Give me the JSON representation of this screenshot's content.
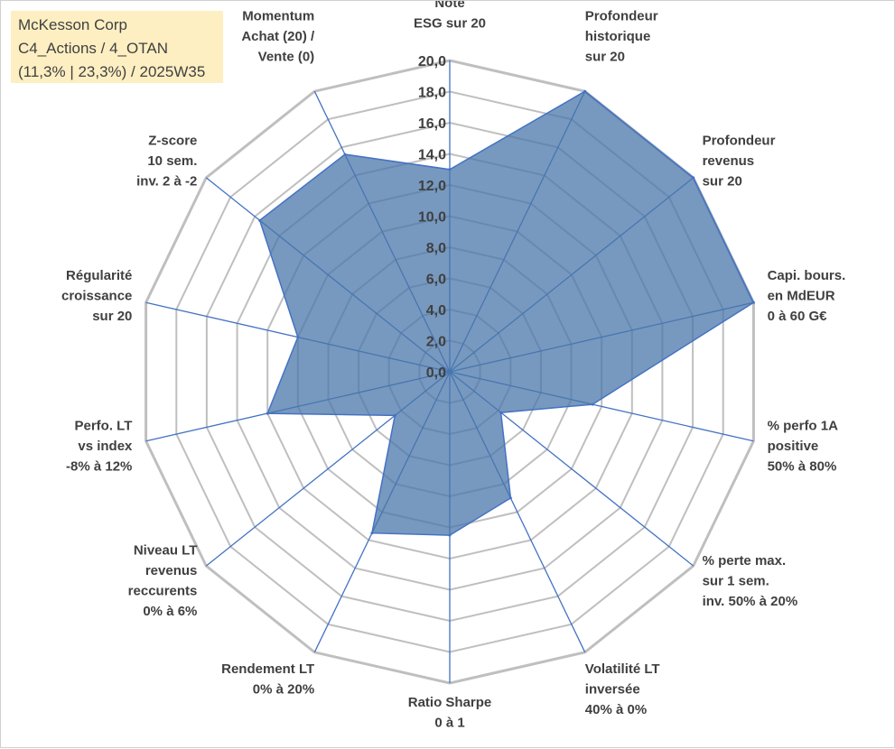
{
  "info_box": {
    "line1": "McKesson Corp",
    "line2": "C4_Actions / 4_OTAN",
    "line3": "(11,3% | 23,3%) / 2025W35"
  },
  "colors": {
    "grid": "#bfbfbf",
    "spoke": "#4472c4",
    "fill": "#4a77aa",
    "fill_opacity": "0.75",
    "text": "#404040",
    "info_bg": "#fdefc2"
  },
  "chart_data": {
    "type": "radar",
    "rmin": 0,
    "rmax": 20,
    "tick_labels": [
      "0,0",
      "2,0",
      "4,0",
      "6,0",
      "8,0",
      "10,0",
      "12,0",
      "14,0",
      "16,0",
      "18,0",
      "20,0"
    ],
    "grid": true,
    "axes": [
      {
        "label": [
          "Note",
          "ESG sur 20"
        ],
        "value": 13
      },
      {
        "label": [
          "Profondeur",
          "historique",
          "sur 20"
        ],
        "value": 20
      },
      {
        "label": [
          "Profondeur",
          "revenus",
          "sur 20"
        ],
        "value": 20
      },
      {
        "label": [
          "Capi. bours.",
          "en MdEUR",
          "0 à 60 G€"
        ],
        "value": 20
      },
      {
        "label": [
          "% perfo 1A",
          "positive",
          "50% à 80%"
        ],
        "value": 9.4
      },
      {
        "label": [
          "% perte max.",
          "sur 1 sem.",
          "inv. 50% à 20%"
        ],
        "value": 4.2
      },
      {
        "label": [
          "Volatilité LT",
          "inversée",
          "40% à 0%"
        ],
        "value": 9
      },
      {
        "label": [
          "Ratio Sharpe",
          "0 à 1"
        ],
        "value": 10.5
      },
      {
        "label": [
          "Rendement LT",
          "0% à 20%"
        ],
        "value": 11.5
      },
      {
        "label": [
          "Niveau LT",
          "revenus",
          "reccurents",
          "0% à 6%"
        ],
        "value": 4.5
      },
      {
        "label": [
          "Perfo. LT",
          "vs index",
          "-8% à 12%"
        ],
        "value": 12
      },
      {
        "label": [
          "Régularité",
          "croissance",
          "sur 20"
        ],
        "value": 10
      },
      {
        "label": [
          "Z-score",
          "10 sem.",
          "inv. 2 à -2"
        ],
        "value": 15.6
      },
      {
        "label": [
          "Momentum",
          "Achat (20) /",
          "Vente (0)"
        ],
        "value": 15.5
      }
    ]
  }
}
